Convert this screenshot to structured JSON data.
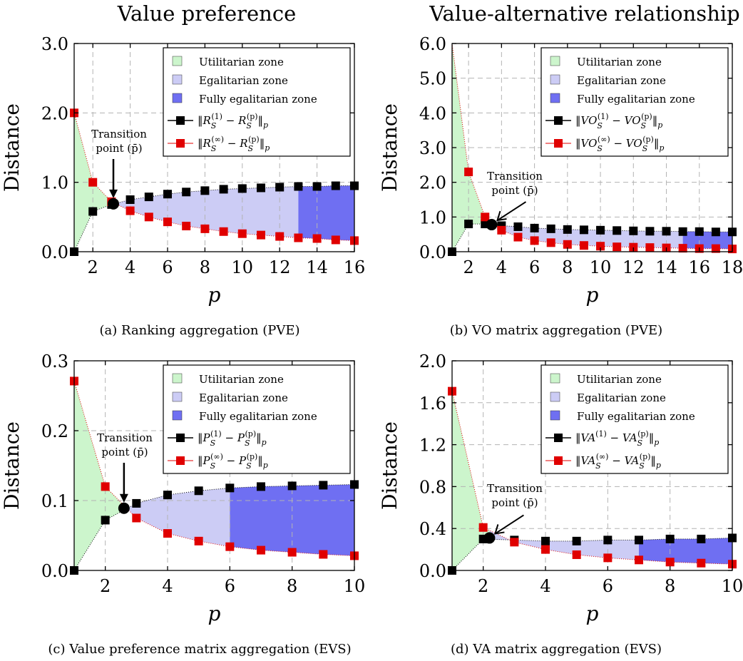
{
  "column_titles": [
    "Value preference",
    "Value-alternative relationship"
  ],
  "legend_zones": [
    "Utilitarian zone",
    "Egalitarian zone",
    "Fully egalitarian zone"
  ],
  "colors": {
    "utilitarian": "#ccf5cc",
    "egalitarian": "#ccccf5",
    "fully_egalitarian": "#6f6ff2",
    "series1": "#000000",
    "series2": "#e00000"
  },
  "transition_label": [
    "Transition",
    "point (p̄)"
  ],
  "chart_data": [
    {
      "type": "line",
      "caption": "(a) Ranking aggregation (PVE)",
      "xlabel": "p",
      "ylabel": "Distance",
      "xlim": [
        1,
        16
      ],
      "ylim": [
        0,
        3.0
      ],
      "xticks": [
        2,
        4,
        6,
        8,
        10,
        12,
        14,
        16
      ],
      "yticks": [
        0,
        1,
        2,
        3
      ],
      "ytick_labels": [
        "0.0",
        "1.0",
        "2.0",
        "3.0"
      ],
      "grid": true,
      "legend_position": "top-right",
      "series_names": [
        "‖R_S^(1) − R_S^(p)‖_p",
        "‖R_S^(∞) − R_S^(p)‖_p"
      ],
      "x": [
        1,
        2,
        3,
        4,
        5,
        6,
        7,
        8,
        9,
        10,
        11,
        12,
        13,
        14,
        15,
        16
      ],
      "s1": [
        0,
        0.58,
        0.68,
        0.75,
        0.79,
        0.83,
        0.86,
        0.88,
        0.9,
        0.91,
        0.92,
        0.93,
        0.94,
        0.94,
        0.95,
        0.95
      ],
      "s2": [
        2.0,
        1.0,
        0.72,
        0.59,
        0.5,
        0.43,
        0.37,
        0.33,
        0.29,
        0.26,
        0.24,
        0.22,
        0.2,
        0.19,
        0.17,
        0.16
      ],
      "transition": {
        "x": 3.1,
        "y": 0.69
      },
      "zones": {
        "egal_start": 3.1,
        "full_start": 13
      }
    },
    {
      "type": "line",
      "caption": "(b) VO matrix aggregation (PVE)",
      "xlabel": "p",
      "ylabel": "Distance",
      "xlim": [
        1,
        18
      ],
      "ylim": [
        0,
        6.0
      ],
      "xticks": [
        2,
        4,
        6,
        8,
        10,
        12,
        14,
        16,
        18
      ],
      "yticks": [
        0,
        1,
        2,
        3,
        4,
        5,
        6
      ],
      "ytick_labels": [
        "0.0",
        "1.0",
        "2.0",
        "3.0",
        "4.0",
        "5.0",
        "6.0"
      ],
      "grid": true,
      "legend_position": "top-right",
      "series_names": [
        "‖VO_S^(1) − VO_S^(p)‖_p",
        "‖VO_S^(∞) − VO_S^(p)‖_p"
      ],
      "x": [
        1,
        2,
        3,
        4,
        5,
        6,
        7,
        8,
        9,
        10,
        11,
        12,
        13,
        14,
        15,
        16,
        17,
        18
      ],
      "s1": [
        0,
        0.8,
        0.8,
        0.75,
        0.72,
        0.68,
        0.66,
        0.64,
        0.63,
        0.62,
        0.61,
        0.6,
        0.59,
        0.59,
        0.58,
        0.58,
        0.57,
        0.57
      ],
      "s2": [
        6.0,
        2.3,
        1.0,
        0.62,
        0.42,
        0.32,
        0.26,
        0.21,
        0.18,
        0.16,
        0.14,
        0.13,
        0.12,
        0.11,
        0.1,
        0.09,
        0.09,
        0.08
      ],
      "s2_visible_from": 2,
      "transition": {
        "x": 3.4,
        "y": 0.78
      },
      "zones": {
        "egal_start": 3.4,
        "full_start": 15
      }
    },
    {
      "type": "line",
      "caption": "(c) Value preference matrix aggregation (EVS)",
      "xlabel": "p",
      "ylabel": "Distance",
      "xlim": [
        1,
        10
      ],
      "ylim": [
        0,
        0.3
      ],
      "xticks": [
        2,
        4,
        6,
        8,
        10
      ],
      "yticks": [
        0,
        0.1,
        0.2,
        0.3
      ],
      "ytick_labels": [
        "0.0",
        "0.1",
        "0.2",
        "0.3"
      ],
      "grid": true,
      "legend_position": "top-right",
      "series_names": [
        "‖P_S^(1) − P_S^(p)‖_p",
        "‖P_S^(∞) − P_S^(p)‖_p"
      ],
      "x": [
        1,
        2,
        3,
        4,
        5,
        6,
        7,
        8,
        9,
        10
      ],
      "s1": [
        0,
        0.072,
        0.096,
        0.108,
        0.114,
        0.118,
        0.12,
        0.121,
        0.122,
        0.123
      ],
      "s2": [
        0.271,
        0.12,
        0.075,
        0.053,
        0.042,
        0.034,
        0.029,
        0.026,
        0.023,
        0.021
      ],
      "transition": {
        "x": 2.6,
        "y": 0.089
      },
      "zones": {
        "egal_start": 2.6,
        "full_start": 6
      }
    },
    {
      "type": "line",
      "caption": "(d) VA matrix aggregation (EVS)",
      "xlabel": "p",
      "ylabel": "Distance",
      "xlim": [
        1,
        10
      ],
      "ylim": [
        0,
        2.0
      ],
      "xticks": [
        2,
        4,
        6,
        8,
        10
      ],
      "yticks": [
        0,
        0.4,
        0.8,
        1.2,
        1.6,
        2.0
      ],
      "ytick_labels": [
        "0.0",
        "0.4",
        "0.8",
        "1.2",
        "1.6",
        "2.0"
      ],
      "grid": true,
      "legend_position": "top-right",
      "series_names": [
        "‖VA^(1) − VA_S^(p)‖_p",
        "‖VA_S^(∞) − VA_S^(p)‖_p"
      ],
      "x": [
        1,
        2,
        3,
        4,
        5,
        6,
        7,
        8,
        9,
        10
      ],
      "s1": [
        0,
        0.3,
        0.29,
        0.28,
        0.28,
        0.29,
        0.29,
        0.3,
        0.3,
        0.31
      ],
      "s2": [
        1.71,
        0.41,
        0.27,
        0.2,
        0.15,
        0.12,
        0.1,
        0.08,
        0.07,
        0.06
      ],
      "transition": {
        "x": 2.2,
        "y": 0.31
      },
      "zones": {
        "egal_start": 2.2,
        "full_start": 7
      }
    }
  ]
}
